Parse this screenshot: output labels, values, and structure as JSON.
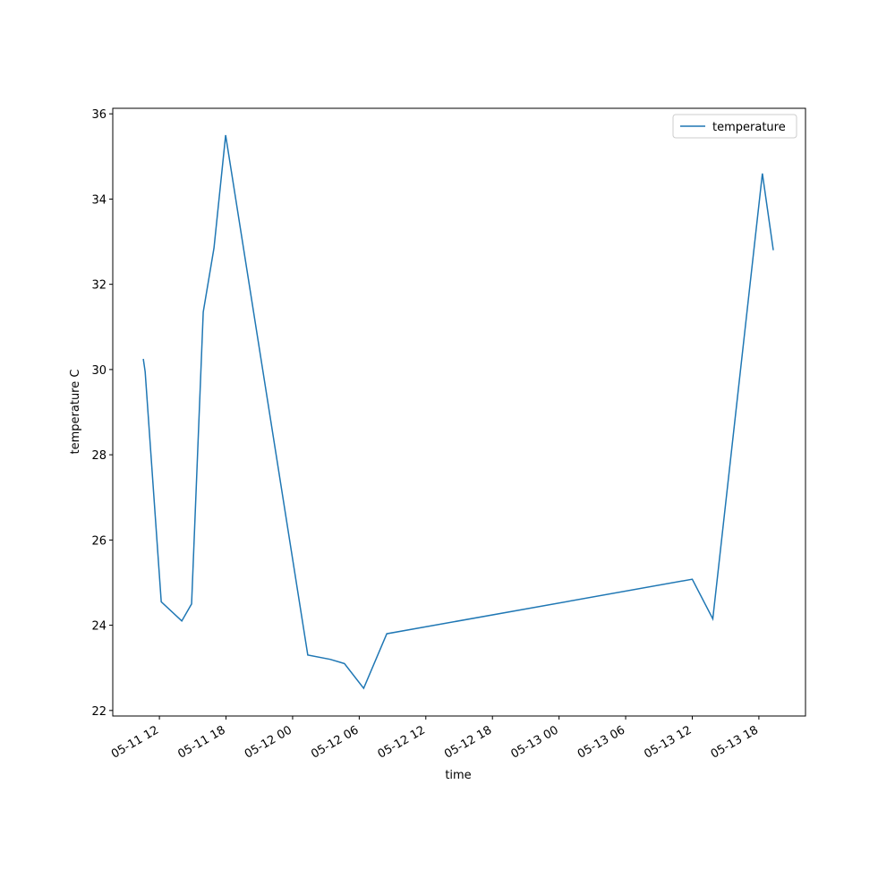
{
  "chart_data": {
    "type": "line",
    "x_label": "time",
    "y_label": "temperature C",
    "x": [
      "05-11 10:33",
      "05-11 10:43",
      "05-11 12:10",
      "05-11 14:01",
      "05-11 14:54",
      "05-11 15:57",
      "05-11 16:55",
      "05-11 17:58",
      "05-12 01:22",
      "05-12 03:23",
      "05-12 04:40",
      "05-12 06:24",
      "05-12 08:29",
      "05-13 12:00",
      "05-13 13:51",
      "05-13 18:19",
      "05-13 19:18"
    ],
    "series": [
      {
        "name": "temperature",
        "color": "#1f77b4",
        "values": [
          30.25,
          29.95,
          24.55,
          24.1,
          24.5,
          31.35,
          32.85,
          35.5,
          23.3,
          23.2,
          23.1,
          22.52,
          23.8,
          25.08,
          24.15,
          34.6,
          32.8
        ]
      }
    ],
    "xlim": [
      "05-11 07:48",
      "05-13 22:12"
    ],
    "xticks": [
      "05-11 12",
      "05-11 18",
      "05-12 00",
      "05-12 06",
      "05-12 12",
      "05-12 18",
      "05-13 00",
      "05-13 06",
      "05-13 12",
      "05-13 18"
    ],
    "ylim": [
      21.87,
      36.13
    ],
    "yticks": [
      22,
      24,
      26,
      28,
      30,
      32,
      34,
      36
    ],
    "legend": "upper right",
    "grid": false
  }
}
